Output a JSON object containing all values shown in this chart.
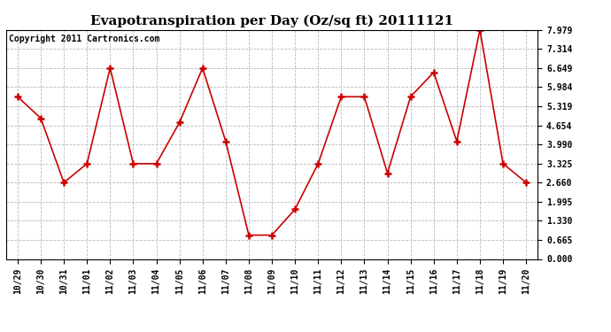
{
  "title": "Evapotranspiration per Day (Oz/sq ft) 20111121",
  "copyright": "Copyright 2011 Cartronics.com",
  "x_labels": [
    "10/29",
    "10/30",
    "10/31",
    "11/01",
    "11/02",
    "11/03",
    "11/04",
    "11/05",
    "11/06",
    "11/07",
    "11/08",
    "11/09",
    "11/10",
    "11/11",
    "11/12",
    "11/13",
    "11/14",
    "11/15",
    "11/16",
    "11/17",
    "11/18",
    "11/19",
    "11/20"
  ],
  "y_values": [
    5.65,
    4.9,
    2.66,
    3.32,
    6.65,
    3.32,
    3.32,
    4.75,
    6.65,
    4.1,
    0.83,
    0.83,
    1.73,
    3.32,
    5.65,
    5.65,
    2.99,
    5.65,
    6.5,
    4.1,
    7.98,
    3.32,
    2.66
  ],
  "y_ticks": [
    0.0,
    0.665,
    1.33,
    1.995,
    2.66,
    3.325,
    3.99,
    4.654,
    5.319,
    5.984,
    6.649,
    7.314,
    7.979
  ],
  "y_min": 0.0,
  "y_max": 7.979,
  "line_color": "#cc0000",
  "marker_color": "#cc0000",
  "bg_color": "#ffffff",
  "grid_color": "#bbbbbb",
  "title_fontsize": 11,
  "copyright_fontsize": 7
}
